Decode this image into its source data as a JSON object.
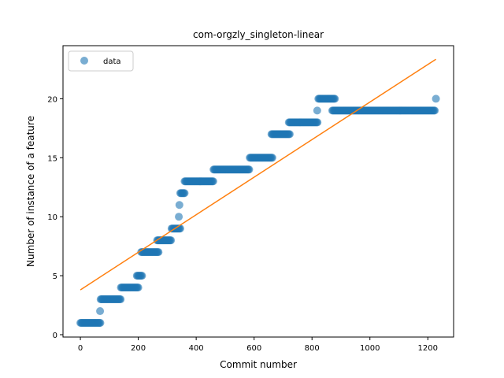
{
  "chart_data": {
    "type": "scatter",
    "title": "com-orgzly_singleton-linear",
    "xlabel": "Commit number",
    "ylabel": "Number of instance of a feature",
    "xlim": [
      -60,
      1289
    ],
    "ylim": [
      -0.2,
      24.5
    ],
    "xticks": [
      0,
      200,
      400,
      600,
      800,
      1000,
      1200
    ],
    "yticks": [
      0,
      5,
      10,
      15,
      20
    ],
    "legend": {
      "position": "top-left",
      "entries": [
        "data"
      ]
    },
    "colors": {
      "points": "#1f77b4",
      "fit": "#ff7f0e"
    },
    "series": [
      {
        "name": "data",
        "kind": "points",
        "segments": [
          {
            "x": [
              0,
              70
            ],
            "y": 1
          },
          {
            "x": [
              68,
              68
            ],
            "y": 2
          },
          {
            "x": [
              70,
              140
            ],
            "y": 3
          },
          {
            "x": [
              140,
              200
            ],
            "y": 4
          },
          {
            "x": [
              195,
              215
            ],
            "y": 5
          },
          {
            "x": [
              210,
              270
            ],
            "y": 7
          },
          {
            "x": [
              265,
              315
            ],
            "y": 8
          },
          {
            "x": [
              315,
              345
            ],
            "y": 9
          },
          {
            "x": [
              340,
              340
            ],
            "y": 10
          },
          {
            "x": [
              342,
              342
            ],
            "y": 11
          },
          {
            "x": [
              345,
              360
            ],
            "y": 12
          },
          {
            "x": [
              360,
              460
            ],
            "y": 13
          },
          {
            "x": [
              460,
              585
            ],
            "y": 14
          },
          {
            "x": [
              585,
              665
            ],
            "y": 15
          },
          {
            "x": [
              660,
              725
            ],
            "y": 17
          },
          {
            "x": [
              720,
              820
            ],
            "y": 18
          },
          {
            "x": [
              818,
              818
            ],
            "y": 19
          },
          {
            "x": [
              822,
              880
            ],
            "y": 20
          },
          {
            "x": [
              870,
              1225
            ],
            "y": 19
          },
          {
            "x": [
              1228,
              1228
            ],
            "y": 20
          }
        ]
      },
      {
        "name": "",
        "kind": "fit-line",
        "x": [
          0,
          1228
        ],
        "y": [
          3.8,
          23.35
        ]
      }
    ]
  }
}
